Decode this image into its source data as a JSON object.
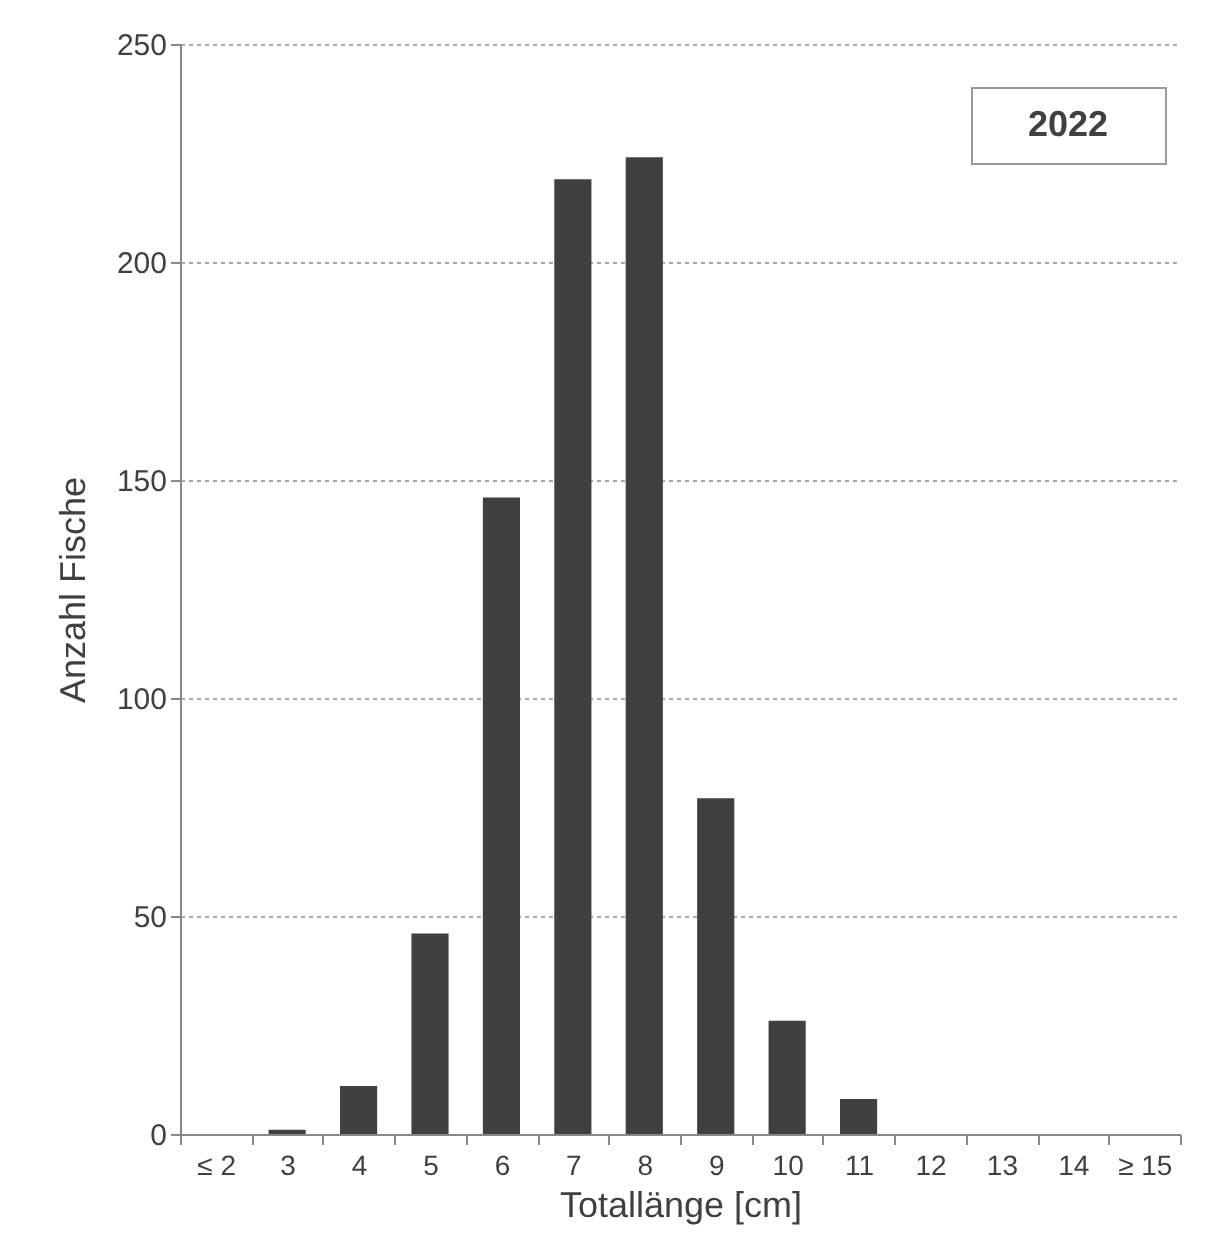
{
  "chart_data": {
    "type": "bar",
    "xlabel": "Totallänge [cm]",
    "ylabel": "Anzahl Fische",
    "categories": [
      "≤ 2",
      "3",
      "4",
      "5",
      "6",
      "7",
      "8",
      "9",
      "10",
      "11",
      "12",
      "13",
      "14",
      "≥ 15"
    ],
    "values": [
      0,
      1,
      11,
      46,
      146,
      219,
      224,
      77,
      26,
      8,
      0,
      0,
      0,
      0
    ],
    "color": "#404040",
    "ylim": [
      0,
      250
    ],
    "yticks": [
      0,
      50,
      100,
      150,
      200,
      250
    ],
    "grid": "y",
    "annotations": [
      "2022"
    ]
  }
}
